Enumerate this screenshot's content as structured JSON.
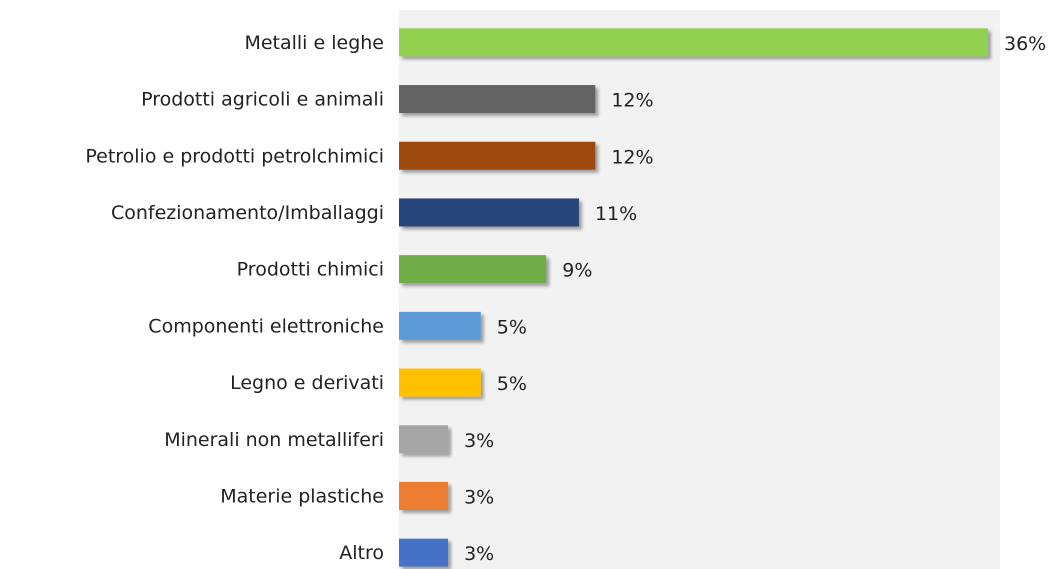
{
  "chart_data": {
    "type": "bar",
    "orientation": "horizontal",
    "categories": [
      "Metalli e leghe",
      "Prodotti agricoli e animali",
      "Petrolio e prodotti petrolchimici",
      "Confezionamento/Imballaggi",
      "Prodotti chimici",
      "Componenti elettroniche",
      "Legno e derivati",
      "Minerali non metalliferi",
      "Materie plastiche",
      "Altro"
    ],
    "values": [
      36,
      12,
      12,
      11,
      9,
      5,
      5,
      3,
      3,
      3
    ],
    "value_labels": [
      "36%",
      "12%",
      "12%",
      "11%",
      "9%",
      "5%",
      "5%",
      "3%",
      "3%",
      "3%"
    ],
    "colors": [
      "#92d050",
      "#636363",
      "#9e480e",
      "#264478",
      "#70ad47",
      "#5b9bd5",
      "#ffc000",
      "#a5a5a5",
      "#ed7d31",
      "#4472c4"
    ]
  }
}
